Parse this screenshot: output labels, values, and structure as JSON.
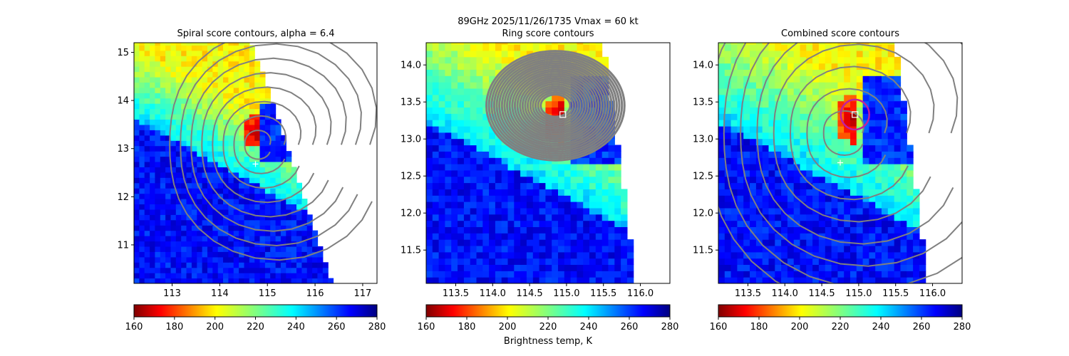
{
  "figure": {
    "suptitle": "89GHz  2025/11/26/1735    Vmax = 60 kt",
    "colorbar_label": "Brightness temp, K"
  },
  "colors": {
    "contour": "#808080",
    "marker": "#ffffff",
    "center_circle": "#c020a0",
    "center_box": "#ffffff",
    "colormap": "jet_r"
  },
  "chart_data": [
    {
      "type": "heatmap",
      "title": "Spiral score contours, alpha =  6.4",
      "x_ticks": [
        "113",
        "114",
        "115",
        "116",
        "117"
      ],
      "y_ticks": [
        "11",
        "12",
        "13",
        "14",
        "15"
      ],
      "xlim": [
        112.2,
        117.3
      ],
      "ylim": [
        10.2,
        15.2
      ],
      "colorbar": {
        "ticks": [
          "160",
          "180",
          "200",
          "220",
          "240",
          "260",
          "280"
        ],
        "range": [
          160,
          280
        ]
      },
      "overlay": "spiral-score contours",
      "marker": {
        "symbol": "+",
        "lon": 114.75,
        "lat": 12.68
      }
    },
    {
      "type": "heatmap",
      "title": "Ring score contours",
      "x_ticks": [
        "113.5",
        "114.0",
        "114.5",
        "115.0",
        "115.5",
        "116.0"
      ],
      "y_ticks": [
        "11.5",
        "12.0",
        "12.5",
        "13.0",
        "13.5",
        "14.0"
      ],
      "xlim": [
        113.1,
        116.4
      ],
      "ylim": [
        11.05,
        14.3
      ],
      "colorbar": {
        "ticks": [
          "160",
          "180",
          "200",
          "220",
          "240",
          "260",
          "280"
        ],
        "range": [
          160,
          280
        ]
      },
      "overlay": "ring-score contours",
      "center_box": {
        "lon": 114.95,
        "lat": 13.33
      }
    },
    {
      "type": "heatmap",
      "title": "Combined score contours",
      "x_ticks": [
        "113.5",
        "114.0",
        "114.5",
        "115.0",
        "115.5",
        "116.0"
      ],
      "y_ticks": [
        "11.5",
        "12.0",
        "12.5",
        "13.0",
        "13.5",
        "14.0"
      ],
      "xlim": [
        113.1,
        116.4
      ],
      "ylim": [
        11.05,
        14.3
      ],
      "colorbar": {
        "ticks": [
          "160",
          "180",
          "200",
          "220",
          "240",
          "260",
          "280"
        ],
        "range": [
          160,
          280
        ]
      },
      "overlay": "combined-score contours",
      "marker": {
        "symbol": "+",
        "lon": 114.75,
        "lat": 12.68
      },
      "center_box": {
        "lon": 114.95,
        "lat": 13.33
      },
      "center_circle": {
        "lon": 114.95,
        "lat": 13.33
      }
    }
  ]
}
